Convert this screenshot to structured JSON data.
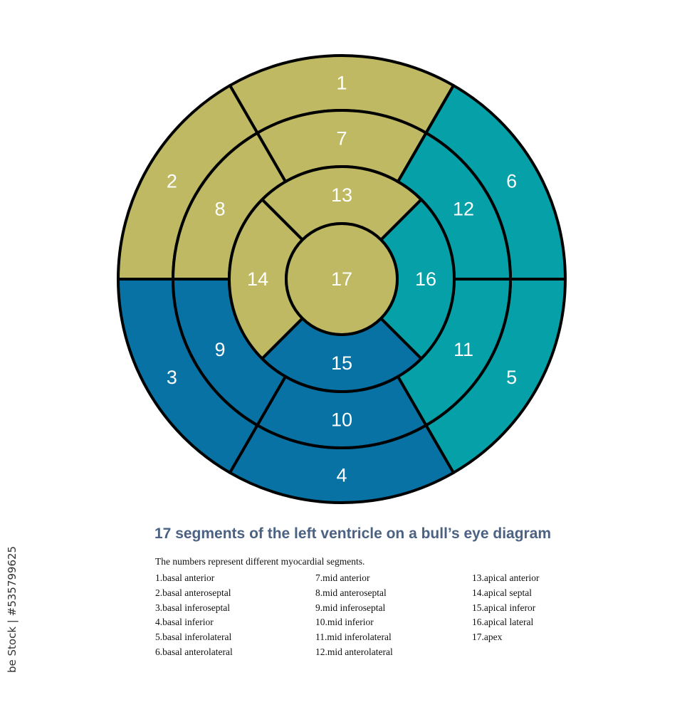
{
  "colors": {
    "olive": "#BEB962",
    "teal": "#05A0A8",
    "blue": "#0772A3",
    "outline": "#000000"
  },
  "segments": [
    {
      "n": "1",
      "ring": "basal",
      "color": "olive"
    },
    {
      "n": "2",
      "ring": "basal",
      "color": "olive"
    },
    {
      "n": "3",
      "ring": "basal",
      "color": "blue"
    },
    {
      "n": "4",
      "ring": "basal",
      "color": "blue"
    },
    {
      "n": "5",
      "ring": "basal",
      "color": "teal"
    },
    {
      "n": "6",
      "ring": "basal",
      "color": "teal"
    },
    {
      "n": "7",
      "ring": "mid",
      "color": "olive"
    },
    {
      "n": "8",
      "ring": "mid",
      "color": "olive"
    },
    {
      "n": "9",
      "ring": "mid",
      "color": "blue"
    },
    {
      "n": "10",
      "ring": "mid",
      "color": "blue"
    },
    {
      "n": "11",
      "ring": "mid",
      "color": "teal"
    },
    {
      "n": "12",
      "ring": "mid",
      "color": "teal"
    },
    {
      "n": "13",
      "ring": "apical",
      "color": "olive"
    },
    {
      "n": "14",
      "ring": "apical",
      "color": "olive"
    },
    {
      "n": "15",
      "ring": "apical",
      "color": "blue"
    },
    {
      "n": "16",
      "ring": "apical",
      "color": "teal"
    },
    {
      "n": "17",
      "ring": "apex",
      "color": "olive"
    }
  ],
  "title": "17 segments of the left ventricle on a bull’s eye diagram",
  "intro": "The numbers represent different myocardial segments.",
  "legend_columns": [
    [
      "1.basal anterior",
      "2.basal anteroseptal",
      "3.basal inferoseptal",
      "4.basal inferior",
      "5.basal inferolateral",
      "6.basal anterolateral"
    ],
    [
      "7.mid anterior",
      "8.mid anteroseptal",
      "9.mid inferoseptal",
      "10.mid inferior",
      "11.mid inferolateral",
      "12.mid anterolateral"
    ],
    [
      "13.apical anterior",
      "14.apical septal",
      "15.apical inferor",
      "16.apical lateral",
      "17.apex"
    ]
  ],
  "watermark": "be Stock | #535799625"
}
